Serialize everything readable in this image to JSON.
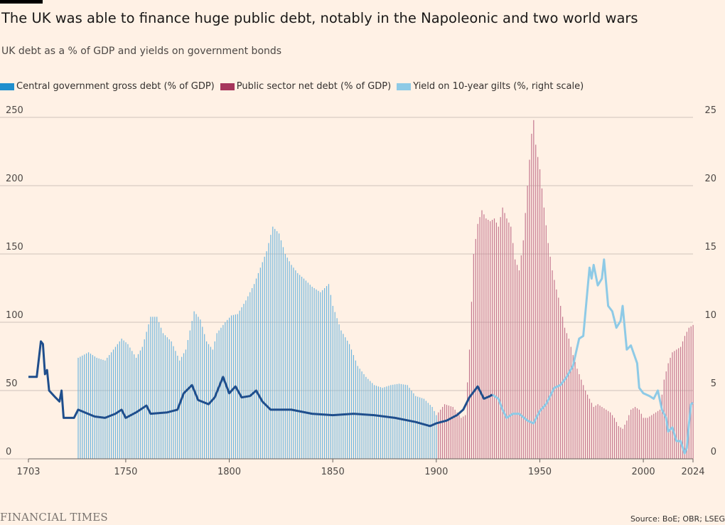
{
  "title": "The UK was able to finance huge public debt, notably in the Napoleonic and two world wars",
  "subtitle": "UK debt as a % of GDP and yields on government bonds",
  "source": "Source: BoE; OBR; LSEG",
  "logo_text": "FINANCIAL TIMES",
  "colors": {
    "background": "#FFF1E5",
    "central_gov_debt": "#1F8FCE",
    "central_gov_bars": "#6FB6DF",
    "public_sector_net_debt": "#A6365C",
    "public_sector_bars": "#C4778F",
    "gilt_yield_early": "#1F4E8C",
    "gilt_yield_late": "#8ECAE6",
    "grid": "#CFC4BA"
  },
  "chart_data": {
    "type": "bar+line",
    "x_ticks": [
      "1703",
      "1750",
      "1800",
      "1850",
      "1900",
      "1950",
      "2000",
      "2024"
    ],
    "x_range": [
      1703,
      2024
    ],
    "y_left": {
      "ticks": [
        "0",
        "50",
        "100",
        "150",
        "200",
        "250"
      ],
      "range": [
        0,
        250
      ],
      "unit": "% of GDP"
    },
    "y_right": {
      "ticks": [
        "0",
        "5",
        "10",
        "15",
        "20",
        "25"
      ],
      "range": [
        0,
        25
      ],
      "unit": "%"
    },
    "legend_position": "top-left",
    "grid": true,
    "series": [
      {
        "name": "Central government gross debt (% of GDP)",
        "kind": "bar",
        "axis": "left",
        "years": [
          1727,
          1900
        ],
        "points": [
          [
            1727,
            74
          ],
          [
            1732,
            78
          ],
          [
            1736,
            74
          ],
          [
            1740,
            72
          ],
          [
            1744,
            80
          ],
          [
            1748,
            88
          ],
          [
            1751,
            84
          ],
          [
            1755,
            74
          ],
          [
            1758,
            82
          ],
          [
            1762,
            104
          ],
          [
            1765,
            104
          ],
          [
            1768,
            92
          ],
          [
            1772,
            86
          ],
          [
            1776,
            72
          ],
          [
            1779,
            80
          ],
          [
            1783,
            108
          ],
          [
            1786,
            102
          ],
          [
            1789,
            86
          ],
          [
            1792,
            80
          ],
          [
            1794,
            92
          ],
          [
            1798,
            100
          ],
          [
            1801,
            105
          ],
          [
            1804,
            106
          ],
          [
            1808,
            116
          ],
          [
            1812,
            128
          ],
          [
            1815,
            140
          ],
          [
            1818,
            152
          ],
          [
            1821,
            170
          ],
          [
            1824,
            165
          ],
          [
            1827,
            150
          ],
          [
            1830,
            142
          ],
          [
            1833,
            136
          ],
          [
            1836,
            132
          ],
          [
            1840,
            126
          ],
          [
            1844,
            122
          ],
          [
            1848,
            128
          ],
          [
            1850,
            112
          ],
          [
            1854,
            94
          ],
          [
            1858,
            84
          ],
          [
            1862,
            68
          ],
          [
            1866,
            60
          ],
          [
            1870,
            54
          ],
          [
            1874,
            52
          ],
          [
            1878,
            54
          ],
          [
            1882,
            55
          ],
          [
            1886,
            54
          ],
          [
            1890,
            46
          ],
          [
            1894,
            44
          ],
          [
            1898,
            38
          ],
          [
            1900,
            32
          ]
        ]
      },
      {
        "name": "Public sector net debt (% of GDP)",
        "kind": "bar",
        "axis": "left",
        "years": [
          1901,
          2024
        ],
        "points": [
          [
            1901,
            34
          ],
          [
            1904,
            40
          ],
          [
            1908,
            38
          ],
          [
            1912,
            30
          ],
          [
            1914,
            32
          ],
          [
            1916,
            80
          ],
          [
            1918,
            150
          ],
          [
            1920,
            172
          ],
          [
            1922,
            182
          ],
          [
            1924,
            176
          ],
          [
            1926,
            174
          ],
          [
            1928,
            176
          ],
          [
            1930,
            170
          ],
          [
            1932,
            184
          ],
          [
            1934,
            176
          ],
          [
            1936,
            170
          ],
          [
            1938,
            146
          ],
          [
            1940,
            138
          ],
          [
            1942,
            160
          ],
          [
            1944,
            200
          ],
          [
            1946,
            238
          ],
          [
            1947,
            248
          ],
          [
            1948,
            230
          ],
          [
            1950,
            212
          ],
          [
            1952,
            184
          ],
          [
            1954,
            158
          ],
          [
            1956,
            138
          ],
          [
            1958,
            124
          ],
          [
            1960,
            112
          ],
          [
            1962,
            96
          ],
          [
            1964,
            88
          ],
          [
            1966,
            76
          ],
          [
            1968,
            66
          ],
          [
            1970,
            58
          ],
          [
            1972,
            50
          ],
          [
            1974,
            44
          ],
          [
            1976,
            38
          ],
          [
            1978,
            40
          ],
          [
            1980,
            38
          ],
          [
            1982,
            36
          ],
          [
            1984,
            34
          ],
          [
            1986,
            30
          ],
          [
            1988,
            24
          ],
          [
            1990,
            22
          ],
          [
            1992,
            28
          ],
          [
            1994,
            36
          ],
          [
            1996,
            38
          ],
          [
            1998,
            36
          ],
          [
            2000,
            30
          ],
          [
            2002,
            30
          ],
          [
            2004,
            32
          ],
          [
            2006,
            34
          ],
          [
            2008,
            36
          ],
          [
            2010,
            58
          ],
          [
            2012,
            70
          ],
          [
            2014,
            78
          ],
          [
            2016,
            80
          ],
          [
            2018,
            82
          ],
          [
            2020,
            90
          ],
          [
            2022,
            96
          ],
          [
            2024,
            98
          ]
        ]
      },
      {
        "name": "Yield on 10-year gilts (%, right scale)",
        "kind": "line",
        "axis": "right",
        "points": [
          [
            1703,
            6
          ],
          [
            1707,
            6
          ],
          [
            1709,
            8.6
          ],
          [
            1710,
            8.4
          ],
          [
            1711,
            6.2
          ],
          [
            1712,
            6.5
          ],
          [
            1713,
            5
          ],
          [
            1716,
            4.5
          ],
          [
            1718,
            4.2
          ],
          [
            1719,
            5
          ],
          [
            1720,
            3
          ],
          [
            1725,
            3
          ],
          [
            1727,
            3.6
          ],
          [
            1735,
            3.1
          ],
          [
            1740,
            3
          ],
          [
            1745,
            3.3
          ],
          [
            1748,
            3.6
          ],
          [
            1750,
            3
          ],
          [
            1755,
            3.4
          ],
          [
            1760,
            3.9
          ],
          [
            1762,
            3.3
          ],
          [
            1770,
            3.4
          ],
          [
            1775,
            3.6
          ],
          [
            1778,
            4.8
          ],
          [
            1782,
            5.4
          ],
          [
            1785,
            4.3
          ],
          [
            1790,
            4.0
          ],
          [
            1793,
            4.5
          ],
          [
            1797,
            6.0
          ],
          [
            1800,
            4.8
          ],
          [
            1803,
            5.3
          ],
          [
            1806,
            4.5
          ],
          [
            1810,
            4.6
          ],
          [
            1813,
            5.0
          ],
          [
            1816,
            4.2
          ],
          [
            1820,
            3.6
          ],
          [
            1830,
            3.6
          ],
          [
            1840,
            3.3
          ],
          [
            1850,
            3.2
          ],
          [
            1860,
            3.3
          ],
          [
            1870,
            3.2
          ],
          [
            1880,
            3.0
          ],
          [
            1890,
            2.7
          ],
          [
            1897,
            2.4
          ],
          [
            1900,
            2.6
          ],
          [
            1905,
            2.8
          ],
          [
            1910,
            3.2
          ],
          [
            1913,
            3.6
          ],
          [
            1916,
            4.5
          ],
          [
            1920,
            5.3
          ],
          [
            1923,
            4.4
          ],
          [
            1926,
            4.6
          ],
          [
            1927,
            4.7
          ],
          [
            1930,
            4.4
          ],
          [
            1932,
            3.6
          ],
          [
            1934,
            3.0
          ],
          [
            1937,
            3.3
          ],
          [
            1940,
            3.3
          ],
          [
            1944,
            2.8
          ],
          [
            1947,
            2.6
          ],
          [
            1950,
            3.5
          ],
          [
            1953,
            4.0
          ],
          [
            1957,
            5.2
          ],
          [
            1960,
            5.4
          ],
          [
            1963,
            6.0
          ],
          [
            1966,
            6.8
          ],
          [
            1969,
            8.8
          ],
          [
            1971,
            9.0
          ],
          [
            1974,
            14.0
          ],
          [
            1975,
            13.2
          ],
          [
            1976,
            14.2
          ],
          [
            1978,
            12.7
          ],
          [
            1980,
            13.2
          ],
          [
            1981,
            14.6
          ],
          [
            1983,
            11.2
          ],
          [
            1985,
            10.8
          ],
          [
            1987,
            9.6
          ],
          [
            1989,
            10.1
          ],
          [
            1990,
            11.2
          ],
          [
            1992,
            8.0
          ],
          [
            1994,
            8.3
          ],
          [
            1997,
            7.0
          ],
          [
            1998,
            5.2
          ],
          [
            2000,
            4.8
          ],
          [
            2003,
            4.6
          ],
          [
            2005,
            4.4
          ],
          [
            2007,
            5.0
          ],
          [
            2009,
            3.6
          ],
          [
            2011,
            3.0
          ],
          [
            2012,
            2.0
          ],
          [
            2014,
            2.3
          ],
          [
            2016,
            1.3
          ],
          [
            2018,
            1.3
          ],
          [
            2020,
            0.4
          ],
          [
            2021,
            0.8
          ],
          [
            2022,
            2.5
          ],
          [
            2023,
            4.0
          ],
          [
            2024,
            4.1
          ]
        ]
      }
    ]
  }
}
